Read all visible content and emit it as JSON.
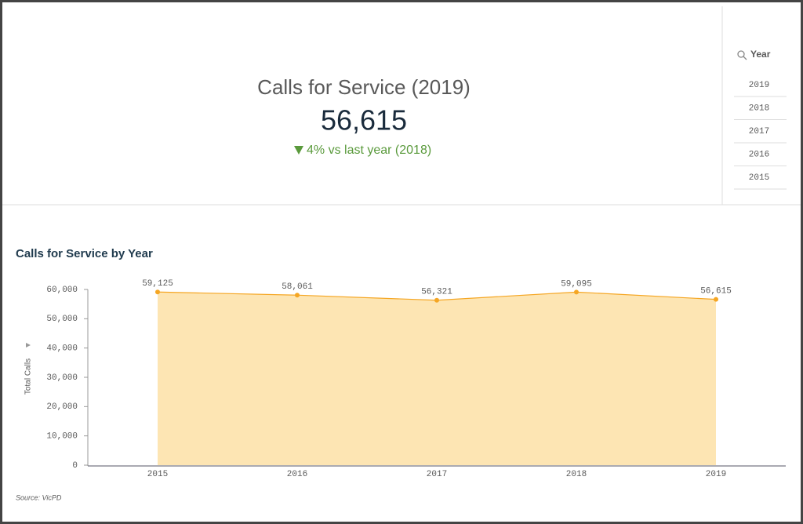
{
  "kpi": {
    "title": "Calls for Service (2019)",
    "value": "56,615",
    "change": "4% vs last year (2018)"
  },
  "filter": {
    "title": "Year",
    "items": [
      "2019",
      "2018",
      "2017",
      "2016",
      "2015"
    ]
  },
  "chart_data": {
    "type": "area",
    "title": "Calls for Service by Year",
    "y_label": "Total Calls",
    "categories": [
      "2015",
      "2016",
      "2017",
      "2018",
      "2019"
    ],
    "series": [
      {
        "name": "Total Calls",
        "color": "#f5a623",
        "fill": "#fde5b3",
        "values": [
          59125,
          58061,
          56321,
          59095,
          56615
        ],
        "value_labels": [
          "59,125",
          "58,061",
          "56,321",
          "59,095",
          "56,615"
        ]
      }
    ],
    "ylim": [
      0,
      60000
    ],
    "yticks": [
      0,
      {
        "value": 10000,
        "label": "10,000"
      },
      {
        "value": 20000,
        "label": "20,000"
      },
      {
        "value": 30000,
        "label": "30,000"
      },
      {
        "value": 40000,
        "label": "40,000"
      },
      {
        "value": 50000,
        "label": "50,000"
      },
      {
        "value": 60000,
        "label": "60,000"
      }
    ],
    "source": "Source: VicPD"
  }
}
